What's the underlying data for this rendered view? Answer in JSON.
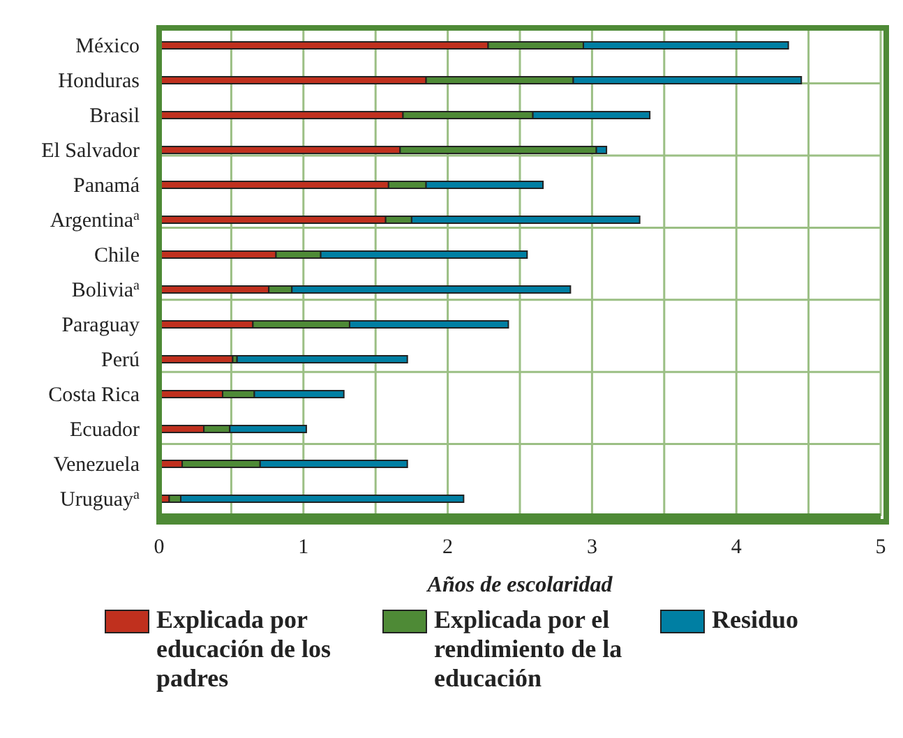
{
  "chart_data": {
    "type": "bar",
    "orientation": "horizontal",
    "stacked": true,
    "xlabel": "Años de escolaridad",
    "categories": [
      "México",
      "Honduras",
      "Brasil",
      "El Salvador",
      "Panamá",
      "Argentina$^{a}$",
      "Chile",
      "Bolivia$^{a}$",
      "Paraguay",
      "Perú",
      "Costa Rica",
      "Ecuador",
      "Venezuela",
      "Uruguay$^{a}$"
    ],
    "series": [
      {
        "name": "Explicada por educación de los padres",
        "color": "#c0301e",
        "values": [
          2.28,
          1.85,
          1.69,
          1.67,
          1.59,
          1.57,
          0.81,
          0.76,
          0.65,
          0.51,
          0.44,
          0.31,
          0.16,
          0.07
        ]
      },
      {
        "name": "Explicada por el rendimiento de la educación",
        "color": "#4e8a36",
        "values": [
          0.66,
          1.02,
          0.9,
          1.36,
          0.26,
          0.18,
          0.31,
          0.16,
          0.67,
          0.03,
          0.22,
          0.18,
          0.54,
          0.08
        ]
      },
      {
        "name": "Residuo",
        "color": "#007fa3",
        "values": [
          1.42,
          1.58,
          0.81,
          0.07,
          0.81,
          1.58,
          1.43,
          1.93,
          1.1,
          1.18,
          0.62,
          0.53,
          1.02,
          1.96
        ]
      }
    ],
    "xlim": [
      0,
      5
    ],
    "xticks": [
      0,
      {
        "value": 0.5,
        "label": null
      },
      1,
      {
        "value": 1.5,
        "label": null
      },
      2,
      {
        "value": 2.5,
        "label": null
      },
      3,
      {
        "value": 3.5,
        "label": null
      },
      4,
      {
        "value": 4.5,
        "label": null
      },
      5
    ],
    "grid": true,
    "legend": "bottom"
  }
}
